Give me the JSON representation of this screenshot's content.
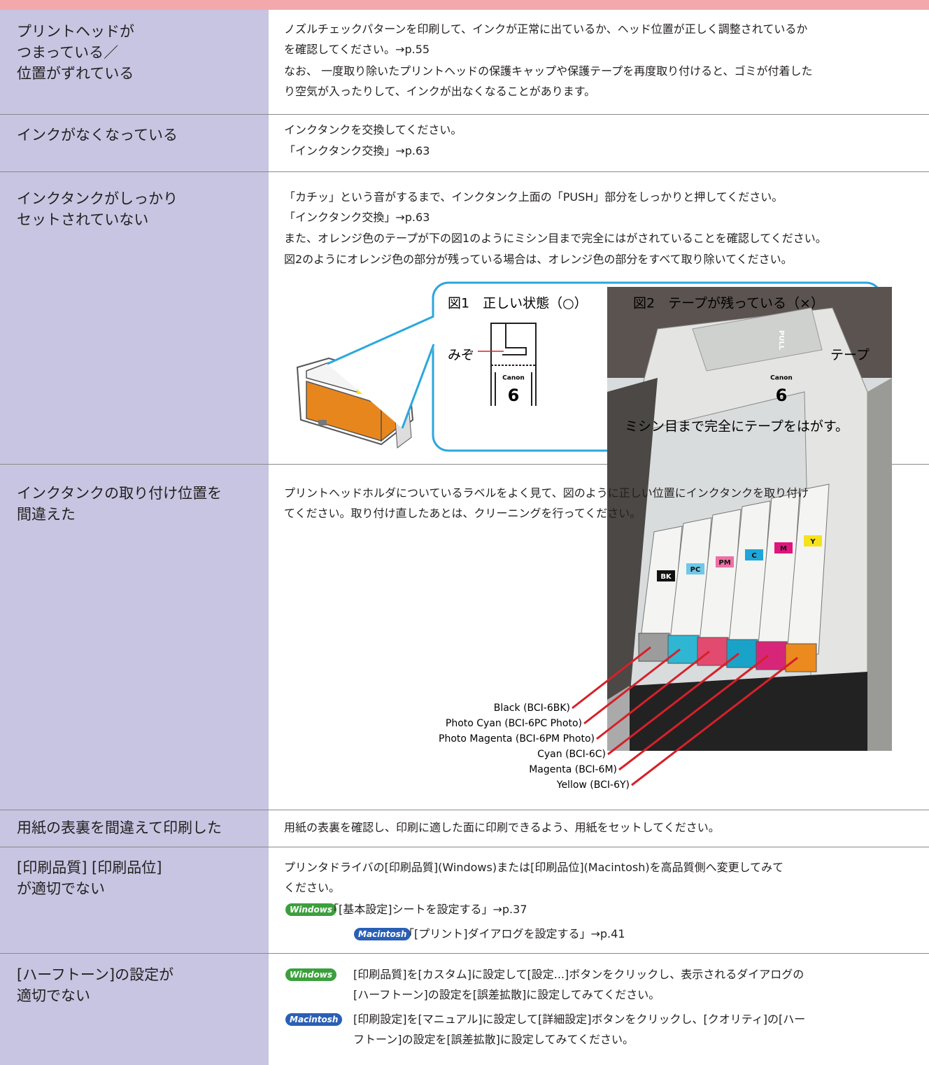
{
  "rows": [
    {
      "label": [
        "プリントヘッドが",
        "つまっている／",
        "位置がずれている"
      ],
      "body": [
        "ノズルチェックパターンを印刷して、インクが正常に出ているか、ヘッド位置が正しく調整されているか",
        "を確認してください。→p.55",
        "なお、 一度取り除いたプリントヘッドの保護キャップや保護テープを再度取り付けると、ゴミが付着した",
        "り空気が入ったりして、インクが出なくなることがあります。"
      ]
    },
    {
      "label": [
        "インクがなくなっている"
      ],
      "body": [
        "インクタンクを交換してください。",
        "「インクタンク交換」→p.63"
      ]
    },
    {
      "label": [
        "インクタンクがしっかり",
        "セットされていない"
      ],
      "body": [
        "「カチッ」という音がするまで、インクタンク上面の「PUSH」部分をしっかりと押してください。",
        "「インクタンク交換」→p.63",
        "また、オレンジ色のテープが下の図1のようにミシン目まで完全にはがされていることを確認してください。",
        "図2のようにオレンジ色の部分が残っている場合は、オレンジ色の部分をすべて取り除いてください。"
      ]
    },
    {
      "label": [
        "インクタンクの取り付け位置を",
        "間違えた"
      ],
      "body": [
        "プリントヘッドホルダについているラベルをよく見て、図のように正しい位置にインクタンクを取り付け",
        "てください。取り付け直したあとは、クリーニングを行ってください。"
      ]
    },
    {
      "label": [
        "用紙の表裏を間違えて印刷した"
      ],
      "body": [
        "用紙の表裏を確認し、印刷に適した面に印刷できるよう、用紙をセットしてください。"
      ]
    },
    {
      "label": [
        "[印刷品質] [印刷品位]",
        "が適切でない"
      ],
      "body": [
        "プリンタドライバの[印刷品質](Windows)または[印刷品位](Macintosh)を高品質側へ変更してみて",
        "ください。"
      ],
      "links": [
        {
          "badge": "Windows",
          "text": "「[基本設定]シートを設定する」→p.37"
        },
        {
          "badge": "Macintosh",
          "text": "「[プリント]ダイアログを設定する」→p.41"
        }
      ]
    },
    {
      "label": [
        "[ハーフトーン]の設定が",
        "適切でない"
      ],
      "notes": [
        {
          "badge": "Windows",
          "lines": [
            "[印刷品質]を[カスタム]に設定して[設定...]ボタンをクリックし、表示されるダイアログの",
            "[ハーフトーン]の設定を[誤差拡散]に設定してみてください。"
          ]
        },
        {
          "badge": "Macintosh",
          "lines": [
            "[印刷設定]を[マニュアル]に設定して[詳細設定]ボタンをクリックし、[クオリティ]の[ハー",
            "フトーン]の設定を[誤差拡散]に設定してみてください。"
          ]
        }
      ]
    }
  ],
  "figure_tape": {
    "fig1": "図1　正しい状態（○）",
    "fig2": "図2　テープが残っている（×）",
    "groove": "みぞ",
    "tape": "テープ",
    "brand": "Canon",
    "number": "6",
    "tape_text": "PULL",
    "callout": "ミシン目まで完全にテープをはがす。"
  },
  "figure_tanks": {
    "tank_labels": [
      "BK",
      "PC",
      "PM",
      "C",
      "M",
      "Y"
    ],
    "labels": [
      "Black (BCI-6BK)",
      "Photo Cyan (BCI-6PC Photo)",
      "Photo Magenta (BCI-6PM Photo)",
      "Cyan (BCI-6C)",
      "Magenta (BCI-6M)",
      "Yellow (BCI-6Y)"
    ]
  }
}
